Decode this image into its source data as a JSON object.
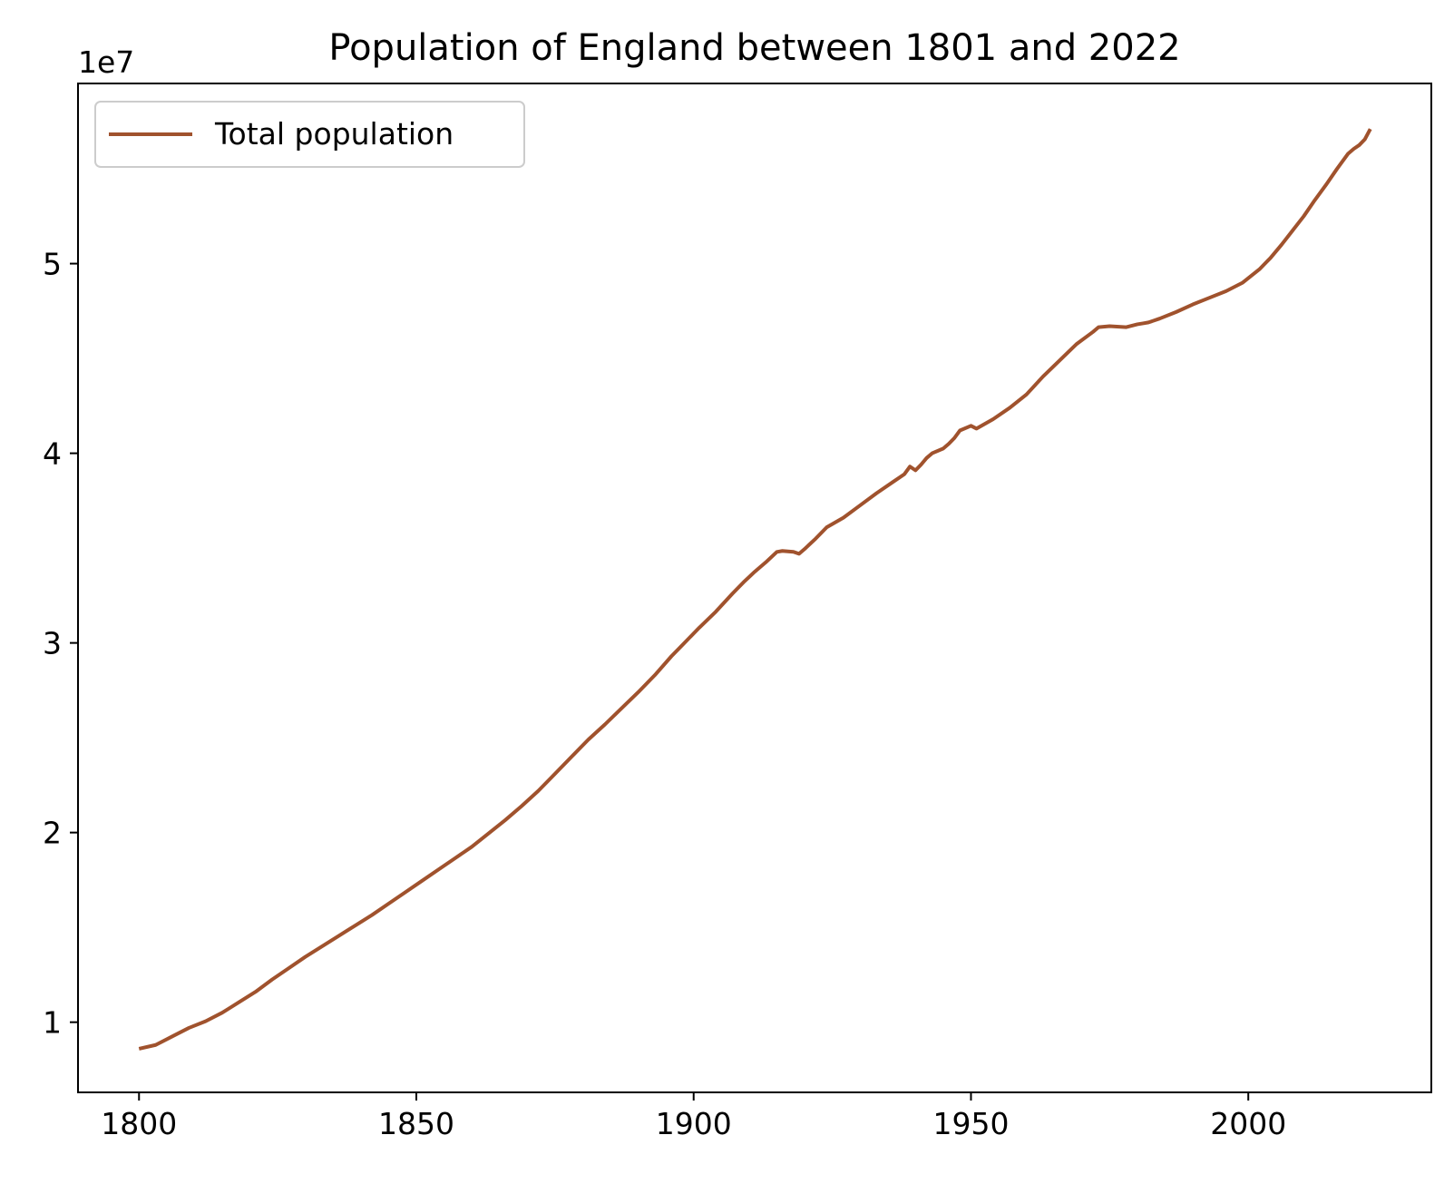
{
  "chart_data": {
    "type": "line",
    "title": "Population of England between 1801 and 2022",
    "xlabel": "",
    "ylabel": "",
    "y_offset_label": "1e7",
    "xlim": [
      1789,
      2033
    ],
    "ylim": [
      6300000,
      59500000
    ],
    "x_ticks": [
      1800,
      1850,
      1900,
      1950,
      2000
    ],
    "x_tick_labels": [
      "1800",
      "1850",
      "1900",
      "1950",
      "2000"
    ],
    "y_ticks": [
      10000000,
      20000000,
      30000000,
      40000000,
      50000000
    ],
    "y_tick_labels": [
      "1",
      "2",
      "3",
      "4",
      "5"
    ],
    "grid": false,
    "legend_position": "upper-left",
    "series": [
      {
        "name": "Total population",
        "color": "#a0522d",
        "x": [
          1800,
          1803,
          1806,
          1809,
          1812,
          1815,
          1818,
          1821,
          1824,
          1827,
          1830,
          1833,
          1836,
          1839,
          1842,
          1845,
          1848,
          1851,
          1854,
          1857,
          1860,
          1863,
          1866,
          1869,
          1872,
          1875,
          1878,
          1881,
          1884,
          1887,
          1890,
          1893,
          1896,
          1898,
          1901,
          1904,
          1907,
          1909,
          1911,
          1913,
          1915,
          1916,
          1918,
          1919,
          1920,
          1922,
          1924,
          1927,
          1930,
          1933,
          1936,
          1938,
          1939,
          1940,
          1941,
          1942,
          1943,
          1945,
          1946,
          1947,
          1948,
          1950,
          1951,
          1954,
          1957,
          1960,
          1963,
          1966,
          1969,
          1972,
          1973,
          1975,
          1978,
          1980,
          1981,
          1982,
          1984,
          1987,
          1990,
          1993,
          1996,
          1999,
          2002,
          2004,
          2006,
          2008,
          2010,
          2012,
          2014,
          2016,
          2018,
          2019,
          2020,
          2021,
          2022
        ],
        "values": [
          8600000,
          8800000,
          9250000,
          9700000,
          10050000,
          10500000,
          11050000,
          11600000,
          12250000,
          12850000,
          13450000,
          14000000,
          14550000,
          15100000,
          15650000,
          16250000,
          16850000,
          17450000,
          18050000,
          18650000,
          19250000,
          19950000,
          20650000,
          21400000,
          22200000,
          23100000,
          24000000,
          24900000,
          25700000,
          26550000,
          27400000,
          28300000,
          29300000,
          29900000,
          30800000,
          31650000,
          32600000,
          33200000,
          33750000,
          34250000,
          34800000,
          34850000,
          34800000,
          34700000,
          34950000,
          35500000,
          36100000,
          36600000,
          37250000,
          37900000,
          38500000,
          38900000,
          39300000,
          39100000,
          39400000,
          39750000,
          40000000,
          40250000,
          40500000,
          40800000,
          41200000,
          41450000,
          41300000,
          41800000,
          42400000,
          43100000,
          44050000,
          44900000,
          45750000,
          46400000,
          46650000,
          46700000,
          46650000,
          46800000,
          46850000,
          46900000,
          47100000,
          47450000,
          47850000,
          48200000,
          48550000,
          49000000,
          49700000,
          50300000,
          51000000,
          51750000,
          52500000,
          53350000,
          54150000,
          55000000,
          55800000,
          56050000,
          56250000,
          56550000,
          57100000
        ]
      }
    ]
  }
}
